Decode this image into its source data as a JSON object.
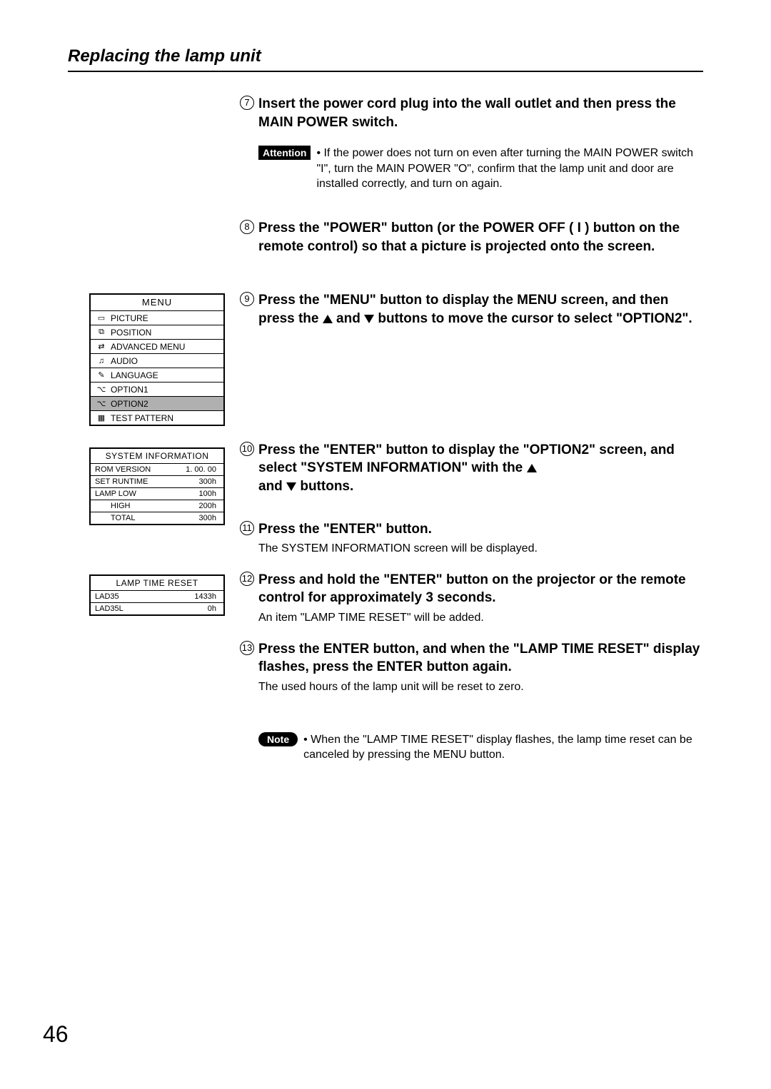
{
  "section_title": "Replacing the lamp unit",
  "page_number": "46",
  "steps": {
    "s7": {
      "num": "7",
      "title": "Insert the power cord plug into the wall outlet and then press the MAIN POWER switch."
    },
    "s8": {
      "num": "8",
      "title": "Press the \"POWER\" button (or the POWER OFF ( I ) button on the remote control) so that a picture is projected onto the screen."
    },
    "s9": {
      "num": "9",
      "title_a": "Press the \"MENU\" button to display the MENU screen, and then press the ",
      "title_b": " and ",
      "title_c": " buttons to move the cursor to select \"OPTION2\"."
    },
    "s10": {
      "num": "10",
      "title_a": "Press the \"ENTER\" button to display the \"OPTION2\" screen, and select \"SYSTEM INFORMATION\" with the ",
      "title_b": "and ",
      "title_c": " buttons."
    },
    "s11": {
      "num": "11",
      "title": "Press the \"ENTER\" button.",
      "sub": "The SYSTEM INFORMATION screen will be displayed."
    },
    "s12": {
      "num": "12",
      "title": "Press and hold the \"ENTER\" button on the projector or the remote control for approximately 3 seconds.",
      "sub": "An item \"LAMP TIME RESET\" will be added."
    },
    "s13": {
      "num": "13",
      "title": "Press the ENTER button, and when the \"LAMP TIME RESET\" display flashes, press the ENTER button again.",
      "sub": "The used hours of the lamp unit will be reset to zero."
    }
  },
  "attention": {
    "label": "Attention",
    "text": "• If the power does not turn on even after turning the MAIN POWER switch \"I\", turn the MAIN POWER \"O\", confirm that the lamp unit and door are installed correctly, and turn on again."
  },
  "note": {
    "label": "Note",
    "text": "• When the \"LAMP TIME RESET\" display flashes, the lamp time reset can be canceled by pressing the MENU button."
  },
  "menu": {
    "title": "MENU",
    "items": [
      {
        "icon": "▭",
        "label": "PICTURE"
      },
      {
        "icon": "⧉",
        "label": "POSITION"
      },
      {
        "icon": "⇄",
        "label": "ADVANCED MENU"
      },
      {
        "icon": "♫",
        "label": "AUDIO"
      },
      {
        "icon": "✎",
        "label": "LANGUAGE"
      },
      {
        "icon": "⌥",
        "label": "OPTION1"
      },
      {
        "icon": "⌥",
        "label": "OPTION2",
        "selected": true
      },
      {
        "icon": "▦",
        "label": "TEST PATTERN"
      }
    ]
  },
  "sysinfo": {
    "title": "SYSTEM INFORMATION",
    "rows": [
      {
        "k": "ROM VERSION",
        "v": "1. 00. 00"
      },
      {
        "k": "SET RUNTIME",
        "v": "300h"
      },
      {
        "k": "LAMP LOW",
        "v": "100h"
      },
      {
        "k": "HIGH",
        "v": "200h",
        "indent": true
      },
      {
        "k": "TOTAL",
        "v": "300h",
        "indent": true
      }
    ]
  },
  "lampreset": {
    "title": "LAMP TIME RESET",
    "rows": [
      {
        "k": "LAD35",
        "v": "1433h"
      },
      {
        "k": "LAD35L",
        "v": "0h"
      }
    ]
  }
}
